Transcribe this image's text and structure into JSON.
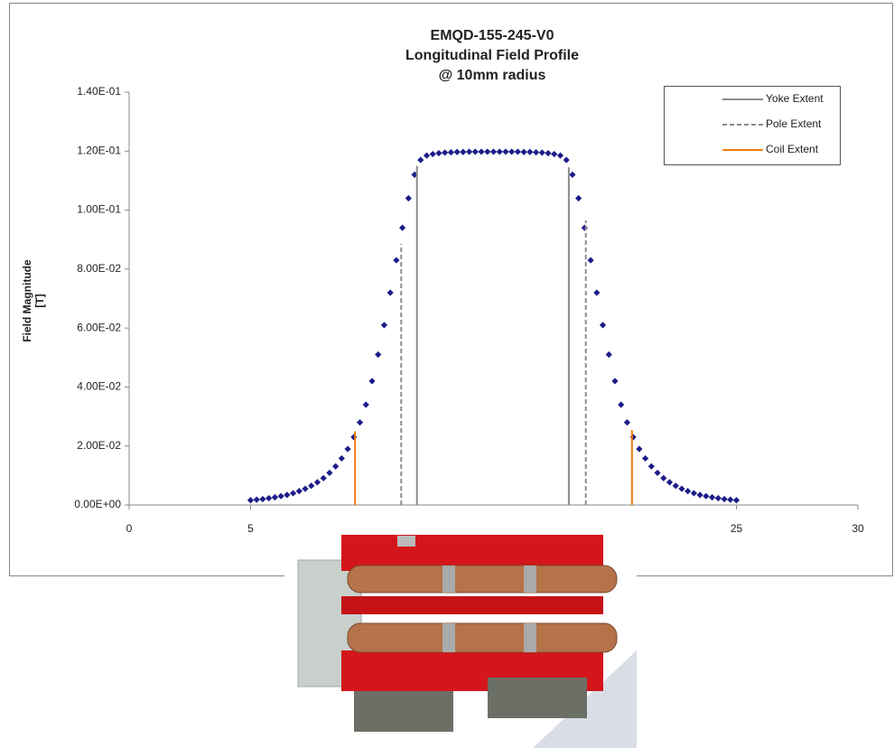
{
  "chart_data": {
    "type": "scatter",
    "title": [
      "EMQD-155-245-V0",
      "Longitudinal Field Profile",
      "@ 10mm radius"
    ],
    "y_label": [
      "Field Magnitude",
      "[T]"
    ],
    "xlim": [
      0,
      30
    ],
    "xticks": [
      0,
      5,
      25,
      30
    ],
    "ylim": [
      0,
      0.14
    ],
    "yticks": [
      {
        "value": 0,
        "label": "0.00E+00"
      },
      {
        "value": 0.02,
        "label": "2.00E-02"
      },
      {
        "value": 0.04,
        "label": "4.00E-02"
      },
      {
        "value": 0.06,
        "label": "6.00E-02"
      },
      {
        "value": 0.08,
        "label": "8.00E-02"
      },
      {
        "value": 0.1,
        "label": "1.00E-01"
      },
      {
        "value": 0.12,
        "label": "1.20E-01"
      },
      {
        "value": 0.14,
        "label": "1.40E-01"
      }
    ],
    "legend": "upper right",
    "series": [
      {
        "type": "scatter",
        "color": "#1c1c8a",
        "x": [
          5,
          5.25,
          5.5,
          5.75,
          6,
          6.25,
          6.5,
          6.75,
          7,
          7.25,
          7.5,
          7.75,
          8,
          8.25,
          8.5,
          8.75,
          9,
          9.25,
          9.5,
          9.75,
          10,
          10.25,
          10.5,
          10.75,
          11,
          11.25,
          11.5,
          11.75,
          12,
          12.25,
          12.5,
          12.75,
          13,
          13.25,
          13.5,
          13.75,
          14,
          14.25,
          14.5,
          14.75,
          15,
          15.25,
          15.5,
          15.75,
          16,
          16.25,
          16.5,
          16.75,
          17,
          17.25,
          17.5,
          17.75,
          18,
          18.25,
          18.5,
          18.75,
          19,
          19.25,
          19.5,
          19.75,
          20,
          20.25,
          20.5,
          20.75,
          21,
          21.25,
          21.5,
          21.75,
          22,
          22.25,
          22.5,
          22.75,
          23,
          23.25,
          23.5,
          23.75,
          24,
          24.25,
          24.5,
          24.75,
          25
        ],
        "values": [
          0.0016,
          0.0018,
          0.002,
          0.0023,
          0.0026,
          0.003,
          0.0034,
          0.004,
          0.0047,
          0.0055,
          0.0065,
          0.0077,
          0.0091,
          0.0109,
          0.0131,
          0.0158,
          0.019,
          0.023,
          0.028,
          0.034,
          0.042,
          0.051,
          0.061,
          0.072,
          0.083,
          0.094,
          0.104,
          0.112,
          0.117,
          0.1185,
          0.119,
          0.1193,
          0.1195,
          0.1196,
          0.1197,
          0.1197,
          0.1198,
          0.1198,
          0.1198,
          0.1198,
          0.1198,
          0.1198,
          0.1198,
          0.1198,
          0.1198,
          0.1197,
          0.1197,
          0.1196,
          0.1195,
          0.1193,
          0.119,
          0.1185,
          0.117,
          0.112,
          0.104,
          0.094,
          0.083,
          0.072,
          0.061,
          0.051,
          0.042,
          0.034,
          0.028,
          0.023,
          0.019,
          0.0158,
          0.0131,
          0.0109,
          0.0091,
          0.0077,
          0.0065,
          0.0055,
          0.0047,
          0.004,
          0.0034,
          0.003,
          0.0026,
          0.0023,
          0.002,
          0.0018,
          0.0016
        ]
      },
      {
        "type": "line",
        "name": "Yoke Extent",
        "color": "#8c8c8c",
        "dash": false,
        "x": [
          11.85,
          11.85,
          null,
          18.1,
          18.1
        ],
        "values": [
          0,
          0.115,
          null,
          0,
          0.1145
        ]
      },
      {
        "type": "line",
        "name": "Pole Extent",
        "color": "#8c8c8c",
        "dash": true,
        "x": [
          11.2,
          11.2,
          null,
          18.8,
          18.8
        ],
        "values": [
          0,
          0.0885,
          null,
          0,
          0.0965
        ]
      },
      {
        "type": "line",
        "name": "Coil Extent",
        "color": "#f07d10",
        "dash": false,
        "x": [
          9.3,
          9.3,
          null,
          20.7,
          20.7
        ],
        "values": [
          0,
          0.025,
          null,
          0,
          0.0254
        ]
      }
    ]
  }
}
